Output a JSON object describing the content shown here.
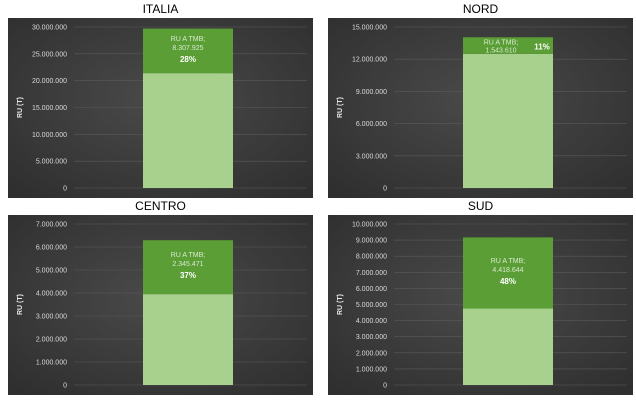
{
  "colors": {
    "panel_bg": "#3d3d3d",
    "bar_base": "#a9d18e",
    "bar_tmb": "#5a9e35",
    "grid": "#5a5a5a"
  },
  "chart_data": [
    {
      "type": "bar",
      "stacked": true,
      "title": "ITALIA",
      "ylabel": "RU (T)",
      "yticks": [
        "0",
        "5.000.000",
        "10.000.000",
        "15.000.000",
        "20.000.000",
        "25.000.000",
        "30.000.000"
      ],
      "ylim": [
        0,
        30000000
      ],
      "series": [
        {
          "name": "",
          "values": [
            21400000
          ]
        },
        {
          "name": "RU A TMB",
          "values": [
            8307925
          ]
        }
      ],
      "annotation": {
        "name": "RU A TMB;",
        "value": "8.307.925",
        "pct": "28%"
      },
      "grid": true
    },
    {
      "type": "bar",
      "stacked": true,
      "title": "NORD",
      "ylabel": "RU (T)",
      "yticks": [
        "0",
        "3.000.000",
        "6.000.000",
        "9.000.000",
        "12.000.000",
        "15.000.000"
      ],
      "ylim": [
        0,
        15000000
      ],
      "series": [
        {
          "name": "",
          "values": [
            12500000
          ]
        },
        {
          "name": "RU A TMB",
          "values": [
            1543610
          ]
        }
      ],
      "annotation": {
        "name": "RU A TMB;",
        "value": "1.543.610",
        "pct": "11%"
      },
      "grid": true
    },
    {
      "type": "bar",
      "stacked": true,
      "title": "CENTRO",
      "ylabel": "RU (T)",
      "yticks": [
        "0",
        "1.000.000",
        "2.000.000",
        "3.000.000",
        "4.000.000",
        "5.000.000",
        "6.000.000",
        "7.000.000"
      ],
      "ylim": [
        0,
        7000000
      ],
      "series": [
        {
          "name": "",
          "values": [
            3950000
          ]
        },
        {
          "name": "RU A TMB",
          "values": [
            2345471
          ]
        }
      ],
      "annotation": {
        "name": "RU A TMB;",
        "value": "2.345.471",
        "pct": "37%"
      },
      "grid": true
    },
    {
      "type": "bar",
      "stacked": true,
      "title": "SUD",
      "ylabel": "RU (T)",
      "yticks": [
        "0",
        "1.000.000",
        "2.000.000",
        "3.000.000",
        "4.000.000",
        "5.000.000",
        "6.000.000",
        "7.000.000",
        "8.000.000",
        "9.000.000",
        "10.000.000"
      ],
      "ylim": [
        0,
        10000000
      ],
      "series": [
        {
          "name": "",
          "values": [
            4750000
          ]
        },
        {
          "name": "RU A TMB",
          "values": [
            4418644
          ]
        }
      ],
      "annotation": {
        "name": "RU A TMB;",
        "value": "4.418.644",
        "pct": "48%"
      },
      "grid": true
    }
  ]
}
